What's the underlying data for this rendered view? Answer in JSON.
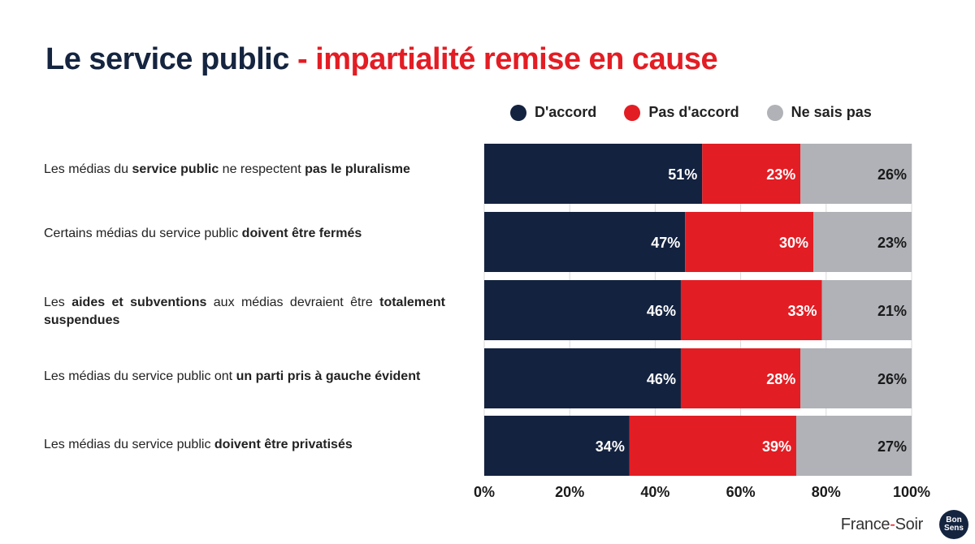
{
  "title": {
    "main": "Le service public",
    "accent": "- impartialité remise en cause"
  },
  "colors": {
    "agree": "#13223f",
    "disagree": "#e31d24",
    "unknown": "#b0b2b7",
    "title_main": "#152540",
    "title_accent": "#e31d24"
  },
  "legend": [
    {
      "label": "D'accord",
      "color": "#13223f"
    },
    {
      "label": "Pas d'accord",
      "color": "#e31d24"
    },
    {
      "label": "Ne sais pas",
      "color": "#b0b2b7"
    }
  ],
  "rows": [
    {
      "parts": [
        {
          "text": "Les médias du ",
          "bold": false
        },
        {
          "text": "service public",
          "bold": true
        },
        {
          "text": " ne respectent ",
          "bold": false
        },
        {
          "text": "pas le pluralisme",
          "bold": true
        }
      ]
    },
    {
      "parts": [
        {
          "text": "Certains médias du service public ",
          "bold": false
        },
        {
          "text": "doivent être fermés",
          "bold": true
        }
      ]
    },
    {
      "parts": [
        {
          "text": "Les ",
          "bold": false
        },
        {
          "text": "aides et subventions",
          "bold": true
        },
        {
          "text": " aux médias devraient être ",
          "bold": false
        },
        {
          "text": "totalement suspendues",
          "bold": true
        }
      ]
    },
    {
      "parts": [
        {
          "text": "Les médias du service public ont ",
          "bold": false
        },
        {
          "text": "un parti pris à gauche évident",
          "bold": true
        }
      ]
    },
    {
      "parts": [
        {
          "text": "Les médias du service public ",
          "bold": false
        },
        {
          "text": "doivent être privatisés",
          "bold": true
        }
      ]
    }
  ],
  "chart_data": {
    "type": "bar",
    "orientation": "horizontal",
    "stacked": true,
    "categories": [
      "Les médias du service public ne respectent pas le pluralisme",
      "Certains médias du service public doivent être fermés",
      "Les aides et subventions aux médias devraient être totalement suspendues",
      "Les médias du service public ont un parti pris à gauche évident",
      "Les médias du service public doivent être privatisés"
    ],
    "series": [
      {
        "name": "D'accord",
        "values": [
          51,
          47,
          46,
          46,
          34
        ],
        "labels": [
          "51%",
          "47%",
          "46%",
          "46%",
          "34%"
        ]
      },
      {
        "name": "Pas d'accord",
        "values": [
          23,
          30,
          33,
          28,
          39
        ],
        "labels": [
          "23%",
          "30%",
          "33%",
          "28%",
          "39%"
        ]
      },
      {
        "name": "Ne sais pas",
        "values": [
          26,
          23,
          21,
          26,
          27
        ],
        "labels": [
          "26%",
          "23%",
          "21%",
          "26%",
          "27%"
        ]
      }
    ],
    "xlim": [
      0,
      100
    ],
    "xticks": [
      "0%",
      "20%",
      "40%",
      "60%",
      "80%",
      "100%"
    ],
    "grid": true,
    "legend": "top"
  },
  "footer": {
    "brand_left": "France",
    "brand_dash": "-",
    "brand_right": "Soir",
    "badge": "Bon Sens"
  }
}
